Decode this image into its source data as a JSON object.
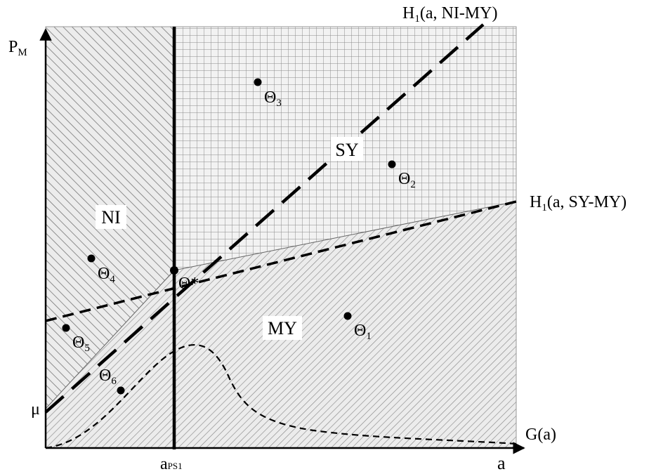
{
  "axes": {
    "y_label": "P",
    "y_label_sub": "M",
    "x_label": "a",
    "x_tick_label": "a",
    "x_tick_sub": "PS1",
    "y_tick_label": "μ"
  },
  "curves": {
    "h1_ni_my": {
      "main": "H",
      "sub": "1",
      "rest": "(a, NI-MY)"
    },
    "h1_sy_my": {
      "main": "H",
      "sub": "1",
      "rest": "(a, SY-MY)"
    },
    "g": {
      "label": "G(a)"
    }
  },
  "regions": {
    "sy": "SY",
    "ni": "NI",
    "my": "MY"
  },
  "points": {
    "theta_star": "Θ*",
    "theta1": {
      "main": "Θ",
      "sub": "1"
    },
    "theta2": {
      "main": "Θ",
      "sub": "2"
    },
    "theta3": {
      "main": "Θ",
      "sub": "3"
    },
    "theta4": {
      "main": "Θ",
      "sub": "4"
    },
    "theta5": {
      "main": "Θ",
      "sub": "5"
    },
    "theta6": {
      "main": "Θ",
      "sub": "6"
    }
  },
  "colors": {
    "region_fill": "#ececec",
    "hatch": "#777777",
    "grid": "#8a8a8a",
    "ink": "#000000"
  }
}
